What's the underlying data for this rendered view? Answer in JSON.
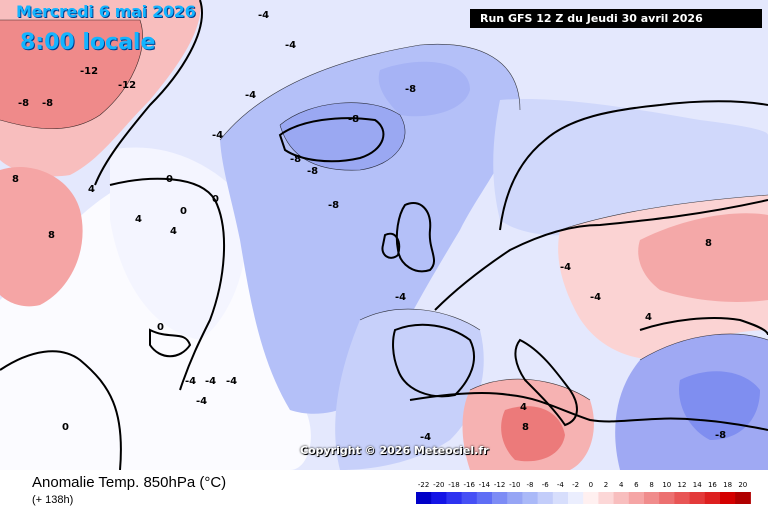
{
  "overlay": {
    "date_line": "Mercredi 6 mai 2026",
    "time_line": "8:00 locale",
    "run_info": "Run GFS 12 Z du Jeudi 30 avril 2026",
    "copyright": "Copyright © 2026 Meteociel.fr"
  },
  "footer": {
    "product": "Anomalie Temp. 850hPa (°C)",
    "lead_time": "(+ 138h)"
  },
  "legend": {
    "ticks": [
      "-22",
      "-20",
      "-18",
      "-16",
      "-14",
      "-12",
      "-10",
      "-8",
      "-6",
      "-4",
      "-2",
      "0",
      "2",
      "4",
      "6",
      "8",
      "10",
      "12",
      "14",
      "16",
      "18",
      "20"
    ],
    "colors": [
      "#0000c8",
      "#1414e6",
      "#2d32f0",
      "#4650f5",
      "#5f6ef5",
      "#7d8cf5",
      "#96a5f5",
      "#aab9f8",
      "#c3cdfa",
      "#d7defc",
      "#ebeefe",
      "#fff0f0",
      "#fcd7d7",
      "#f8bebe",
      "#f5a5a5",
      "#f08c8c",
      "#ec7070",
      "#e85555",
      "#e33a3a",
      "#dd2020",
      "#d40000",
      "#b00000"
    ]
  },
  "contour_labels": [
    {
      "text": "-12"
    },
    {
      "text": "-12"
    },
    {
      "text": "-8"
    },
    {
      "text": "-8"
    },
    {
      "text": "-8"
    },
    {
      "text": "-8"
    },
    {
      "text": "-8"
    },
    {
      "text": "-8"
    },
    {
      "text": "-4"
    },
    {
      "text": "-4"
    },
    {
      "text": "-4"
    },
    {
      "text": "-4"
    },
    {
      "text": "-4"
    },
    {
      "text": "-4"
    },
    {
      "text": "-4"
    },
    {
      "text": "-4"
    },
    {
      "text": "-8"
    },
    {
      "text": "-8"
    },
    {
      "text": "0"
    },
    {
      "text": "0"
    },
    {
      "text": "0"
    },
    {
      "text": "4"
    },
    {
      "text": "4"
    },
    {
      "text": "4"
    },
    {
      "text": "4"
    },
    {
      "text": "8"
    },
    {
      "text": "8"
    },
    {
      "text": "8"
    },
    {
      "text": "8"
    },
    {
      "text": "4"
    },
    {
      "text": "-4"
    },
    {
      "text": "-4"
    },
    {
      "text": "-4"
    },
    {
      "text": "-4"
    },
    {
      "text": "0"
    },
    {
      "text": "0"
    }
  ]
}
